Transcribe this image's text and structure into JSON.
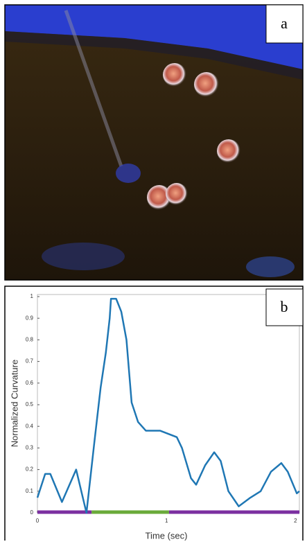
{
  "panel_labels": [
    "a",
    "b"
  ],
  "chart_data": {
    "type": "line",
    "ylabel": "Normalized Curvature",
    "xlabel": "Time (sec)",
    "xlim": [
      0,
      2.03
    ],
    "ylim": [
      0,
      1
    ],
    "xticks": [
      0,
      1,
      2
    ],
    "yticks": [
      0,
      0.1,
      0.2,
      0.3,
      0.4,
      0.5,
      0.6,
      0.7,
      0.8,
      0.9,
      1
    ],
    "grid": false,
    "series": [
      {
        "color": "#1f77b4",
        "x": [
          0,
          0.06,
          0.1,
          0.19,
          0.3,
          0.38,
          0.44,
          0.49,
          0.53,
          0.56,
          0.57,
          0.61,
          0.65,
          0.69,
          0.73,
          0.78,
          0.84,
          0.95,
          1.08,
          1.12,
          1.19,
          1.23,
          1.3,
          1.37,
          1.42,
          1.48,
          1.56,
          1.65,
          1.73,
          1.81,
          1.89,
          1.94,
          2.01,
          2.03
        ],
        "values": [
          0.07,
          0.18,
          0.18,
          0.05,
          0.2,
          0,
          0.32,
          0.58,
          0.74,
          0.9,
          0.99,
          0.99,
          0.93,
          0.8,
          0.51,
          0.42,
          0.38,
          0.38,
          0.35,
          0.3,
          0.16,
          0.13,
          0.22,
          0.28,
          0.24,
          0.1,
          0.03,
          0.07,
          0.1,
          0.19,
          0.23,
          0.19,
          0.09,
          0.1
        ]
      }
    ],
    "segments": [
      {
        "color": "#7b2fa0",
        "x": [
          0,
          0.42
        ]
      },
      {
        "color": "#6aaa3a",
        "x": [
          0.42,
          1.02
        ]
      },
      {
        "color": "#7b2fa0",
        "x": [
          1.02,
          2.03
        ]
      }
    ]
  }
}
